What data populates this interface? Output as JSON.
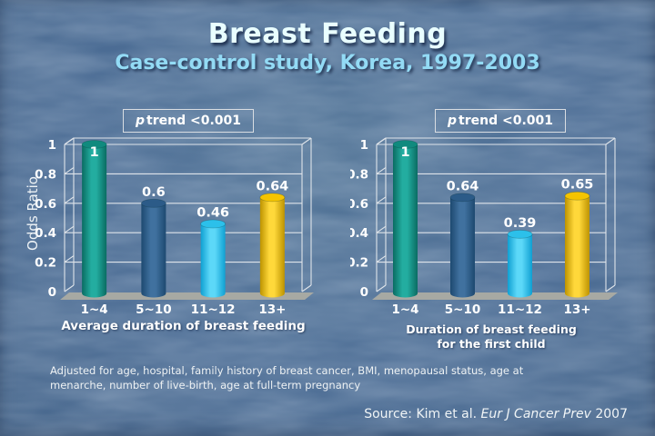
{
  "slide": {
    "title": "Breast Feeding",
    "subtitle": "Case-control study, Korea, 1997-2003",
    "background_color": "#4d6e96",
    "title_color": "#e9feff",
    "subtitle_color": "#93dbf5"
  },
  "chart_data": [
    {
      "type": "bar",
      "annotation": {
        "p": "p",
        "text": " trend <0.001"
      },
      "categories": [
        "1~4",
        "5~10",
        "11~12",
        "13+"
      ],
      "values": [
        1,
        0.6,
        0.46,
        0.64
      ],
      "value_labels": [
        "1",
        "0.6",
        "0.46",
        "0.64"
      ],
      "xlabel": "Average duration of breast feeding",
      "ylabel": "Odds Ratio",
      "ylim": [
        0,
        1
      ],
      "yticks": [
        0,
        0.2,
        0.4,
        0.6,
        0.8,
        1
      ],
      "grid": true,
      "legend": "none",
      "bar_colors": [
        {
          "edge": "#0a6c62",
          "mid": "#23ada0",
          "top": "#108a7e"
        },
        {
          "edge": "#1d4970",
          "mid": "#40719f",
          "top": "#2c5b88"
        },
        {
          "edge": "#0fa0d2",
          "mid": "#5cd8f8",
          "top": "#2cc0ea"
        },
        {
          "edge": "#bd9300",
          "mid": "#ffd83a",
          "top": "#f5c400"
        }
      ]
    },
    {
      "type": "bar",
      "annotation": {
        "p": "p",
        "text": " trend <0.001"
      },
      "categories": [
        "1~4",
        "5~10",
        "11~12",
        "13+"
      ],
      "values": [
        1,
        0.64,
        0.39,
        0.65
      ],
      "value_labels": [
        "1",
        "0.64",
        "0.39",
        "0.65"
      ],
      "xlabel_lines": [
        "Duration of breast feeding",
        "for the first child"
      ],
      "ylim": [
        0,
        1
      ],
      "yticks": [
        0,
        0.2,
        0.4,
        0.6,
        0.8,
        1
      ],
      "grid": true,
      "legend": "none",
      "bar_colors": [
        {
          "edge": "#0a6c62",
          "mid": "#23ada0",
          "top": "#108a7e"
        },
        {
          "edge": "#1d4970",
          "mid": "#40719f",
          "top": "#2c5b88"
        },
        {
          "edge": "#0fa0d2",
          "mid": "#5cd8f8",
          "top": "#2cc0ea"
        },
        {
          "edge": "#bd9300",
          "mid": "#ffd83a",
          "top": "#f5c400"
        }
      ]
    }
  ],
  "footnote_lines": [
    "Adjusted for age, hospital, family history of breast cancer, BMI, menopausal status, age at",
    "menarche, number of live-birth, age at full-term pregnancy"
  ],
  "source": {
    "prefix": "Source: Kim et al. ",
    "journal": "Eur J Cancer Prev",
    "year": " 2007"
  }
}
